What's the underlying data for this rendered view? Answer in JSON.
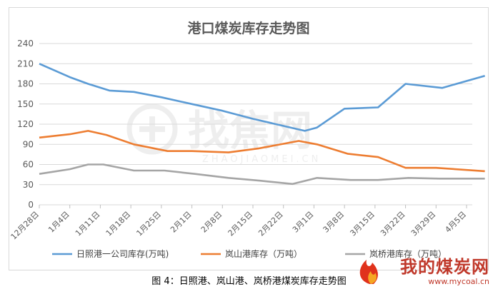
{
  "chart_data": {
    "type": "line",
    "title": "港口煤炭库存走势图",
    "ylim": [
      0,
      240
    ],
    "yticks": [
      0,
      30,
      60,
      90,
      120,
      150,
      180,
      210,
      240
    ],
    "categories": [
      "12月28日",
      "1月4日",
      "1月11日",
      "1月18日",
      "1月25日",
      "2月1日",
      "2月8日",
      "2月15日",
      "2月22日",
      "3月1日",
      "3月8日",
      "3月15日",
      "3月22日",
      "3月29日",
      "4月5日"
    ],
    "grid": "horizontal",
    "legend": "bottom",
    "series": [
      {
        "name": "日照港一公司库存(万吨)",
        "color": "#5b9bd5",
        "x": [
          0,
          1,
          1.6,
          2.3,
          3.1,
          4,
          5,
          6,
          7,
          8.7,
          9.1,
          10,
          11.1,
          12,
          13.2,
          14.6
        ],
        "values": [
          210,
          190,
          180,
          170,
          168,
          160,
          150,
          140,
          128,
          110,
          115,
          143,
          145,
          180,
          174,
          192
        ]
      },
      {
        "name": "岚山港库存（万吨）",
        "color": "#ed7d31",
        "x": [
          0,
          1,
          1.6,
          2.2,
          3.1,
          4.2,
          5,
          6.2,
          7.2,
          8.5,
          9.1,
          10.1,
          11.1,
          12,
          13,
          14.6
        ],
        "values": [
          100,
          105,
          110,
          104,
          90,
          80,
          80,
          78,
          84,
          95,
          90,
          76,
          71,
          55,
          55,
          50
        ]
      },
      {
        "name": "岚桥港库存（万吨）",
        "color": "#a5a5a5",
        "x": [
          0,
          1,
          1.6,
          2.1,
          3.1,
          4.1,
          5.1,
          6.2,
          7.2,
          8.3,
          9.1,
          10.2,
          11.1,
          12.1,
          13.1,
          14.6
        ],
        "values": [
          46,
          53,
          60,
          60,
          51,
          51,
          46,
          40,
          36,
          31,
          40,
          37,
          37,
          40,
          39,
          39
        ]
      }
    ]
  },
  "caption": "图 4：日照港、岚山港、岚桥港煤炭库存走势图",
  "watermark": {
    "text": "找焦网",
    "subtext": "ZHAOJIAOMEI.CN"
  },
  "corner_logo": {
    "name": "我的煤炭网",
    "url": "www.mycoal.cn"
  }
}
